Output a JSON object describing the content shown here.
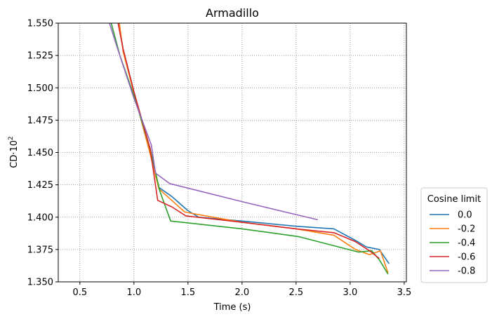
{
  "chart_data": {
    "type": "line",
    "title": "Armadillo",
    "xlabel": "Time (s)",
    "ylabel_base": "CD·10",
    "ylabel_exp": "2",
    "xlim": [
      0.3,
      3.52
    ],
    "ylim": [
      1.35,
      1.55
    ],
    "xticks": [
      0.5,
      1.0,
      1.5,
      2.0,
      2.5,
      3.0,
      3.5
    ],
    "xtick_labels": [
      "0.5",
      "1.0",
      "1.5",
      "2.0",
      "2.5",
      "3.0",
      "3.5"
    ],
    "yticks": [
      1.35,
      1.375,
      1.4,
      1.425,
      1.45,
      1.475,
      1.5,
      1.525,
      1.55
    ],
    "ytick_labels": [
      "1.350",
      "1.375",
      "1.400",
      "1.425",
      "1.450",
      "1.475",
      "1.500",
      "1.525",
      "1.550"
    ],
    "grid": true,
    "legend_title": "Cosine limit",
    "legend_position": "outside-bottom-right",
    "series": [
      {
        "name": "0.0",
        "color": "#1f77b4",
        "points": [
          [
            0.84,
            1.56
          ],
          [
            0.9,
            1.53
          ],
          [
            1.0,
            1.497
          ],
          [
            1.15,
            1.45
          ],
          [
            1.23,
            1.423
          ],
          [
            1.35,
            1.416
          ],
          [
            1.5,
            1.405
          ],
          [
            1.6,
            1.4
          ],
          [
            2.0,
            1.397
          ],
          [
            2.5,
            1.393
          ],
          [
            2.85,
            1.391
          ],
          [
            3.05,
            1.382
          ],
          [
            3.15,
            1.377
          ],
          [
            3.27,
            1.375
          ],
          [
            3.36,
            1.364
          ]
        ]
      },
      {
        "name": "-0.2",
        "color": "#ff7f0e",
        "points": [
          [
            0.85,
            1.56
          ],
          [
            0.9,
            1.528
          ],
          [
            1.0,
            1.496
          ],
          [
            1.15,
            1.449
          ],
          [
            1.23,
            1.422
          ],
          [
            1.35,
            1.413
          ],
          [
            1.47,
            1.404
          ],
          [
            1.6,
            1.402
          ],
          [
            2.0,
            1.396
          ],
          [
            2.5,
            1.391
          ],
          [
            2.85,
            1.386
          ],
          [
            3.05,
            1.375
          ],
          [
            3.18,
            1.371
          ],
          [
            3.28,
            1.374
          ],
          [
            3.35,
            1.357
          ]
        ]
      },
      {
        "name": "-0.4",
        "color": "#2ca02c",
        "points": [
          [
            0.79,
            1.55
          ],
          [
            0.87,
            1.525
          ],
          [
            1.0,
            1.494
          ],
          [
            1.15,
            1.453
          ],
          [
            1.24,
            1.42
          ],
          [
            1.34,
            1.397
          ],
          [
            2.0,
            1.391
          ],
          [
            2.52,
            1.385
          ],
          [
            3.08,
            1.373
          ],
          [
            3.2,
            1.374
          ],
          [
            3.27,
            1.367
          ],
          [
            3.35,
            1.356
          ]
        ]
      },
      {
        "name": "-0.6",
        "color": "#d62728",
        "points": [
          [
            0.83,
            1.56
          ],
          [
            0.9,
            1.53
          ],
          [
            1.0,
            1.497
          ],
          [
            1.15,
            1.453
          ],
          [
            1.22,
            1.413
          ],
          [
            1.35,
            1.408
          ],
          [
            1.48,
            1.401
          ],
          [
            2.0,
            1.396
          ],
          [
            2.5,
            1.391
          ],
          [
            2.85,
            1.388
          ],
          [
            3.05,
            1.381
          ],
          [
            3.18,
            1.374
          ],
          [
            3.27,
            1.368
          ]
        ]
      },
      {
        "name": "-0.8",
        "color": "#9467bd",
        "points": [
          [
            0.77,
            1.551
          ],
          [
            0.85,
            1.53
          ],
          [
            1.0,
            1.492
          ],
          [
            1.16,
            1.456
          ],
          [
            1.2,
            1.434
          ],
          [
            1.33,
            1.426
          ],
          [
            2.0,
            1.412
          ],
          [
            2.5,
            1.402
          ],
          [
            2.7,
            1.398
          ]
        ]
      }
    ]
  }
}
